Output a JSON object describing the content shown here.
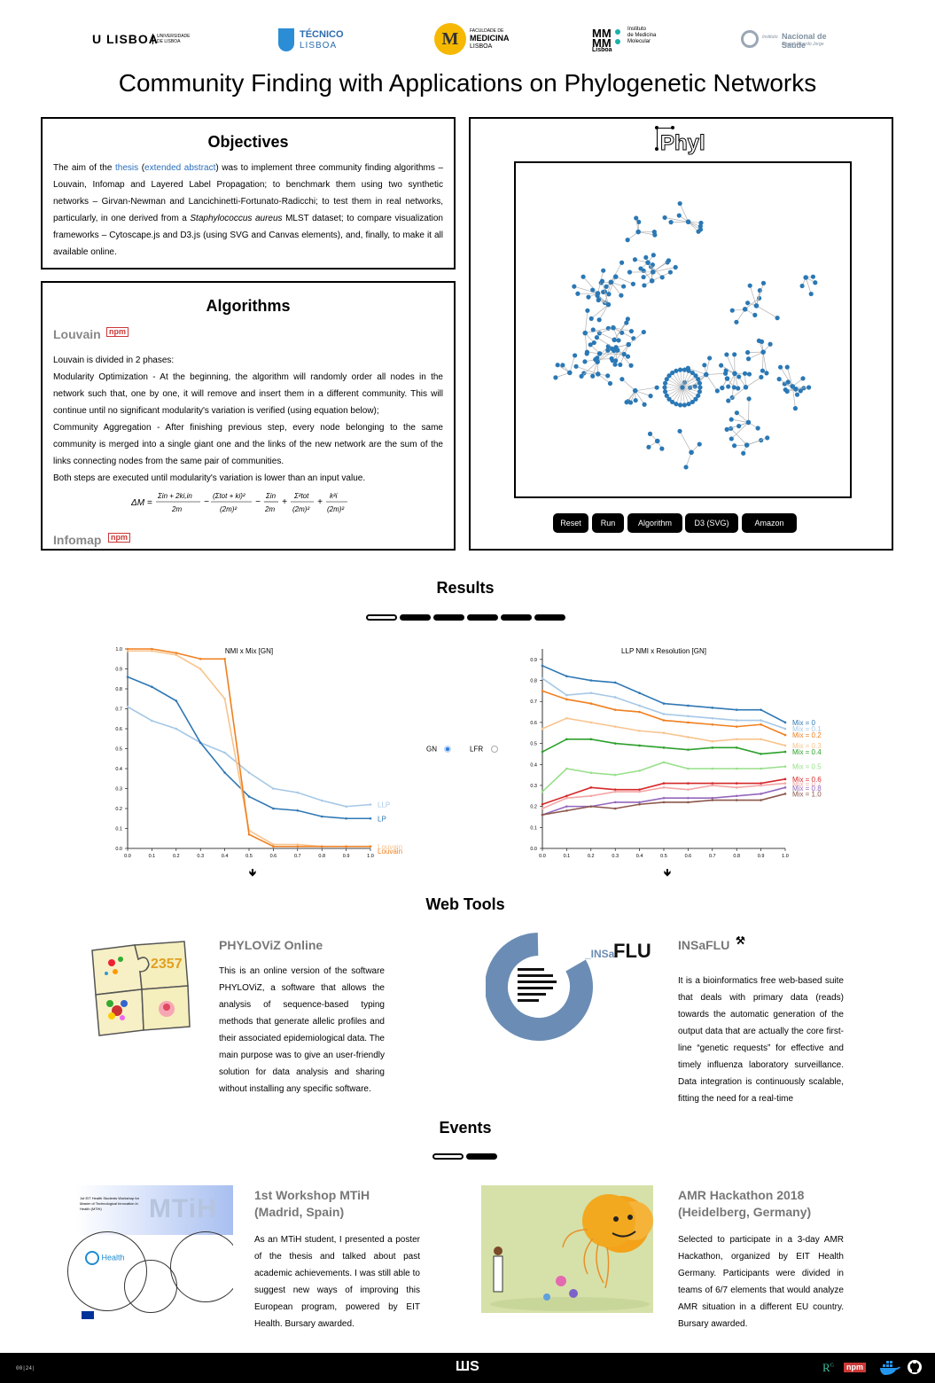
{
  "logos": {
    "lisboa": "U LISBOA",
    "lisboa_sub": "UNIVERSIDADE DE LISBOA",
    "tecnico": "TÉCNICO",
    "tecnico_sub": "LISBOA",
    "medicina_l1": "FACULDADE DE",
    "medicina_l2": "MEDICINA",
    "medicina_l3": "LISBOA",
    "imm_l1": "Instituto",
    "imm_l2": "de Medicina",
    "imm_l3": "Molecular",
    "imm_city": "Lisboa",
    "insa_pre": "Instituto",
    "insa_main": "Nacional de Saúde",
    "insa_sub": "Doutor Ricardo Jorge"
  },
  "page_title": "Community Finding with Applications on Phylogenetic Networks",
  "objectives": {
    "title": "Objectives",
    "t1": "The aim of the ",
    "link1": "thesis",
    "t2": " (",
    "link2": "extended abstract",
    "t3": ") was to implement three community finding algorithms – Louvain, Infomap and Layered Label Propagation; to benchmark them using two synthetic networks – Girvan-Newman and Lancichinetti-Fortunato-Radicchi; to test them in real networks, particularly, in one derived from a ",
    "italic": "Staphylococcus aureus",
    "t4": " MLST dataset; to compare visualization frameworks – Cytoscape.js and D3.js (using SVG and Canvas elements), and, finally, to make it all available online."
  },
  "algorithms": {
    "title": "Algorithms",
    "louvain": "Louvain",
    "npm": "npm",
    "p1": "Louvain is divided in 2 phases:",
    "p2": "Modularity Optimization - At the beginning, the algorithm will randomly order all nodes in the network such that, one by one, it will remove and insert them in a different community. This will continue until no significant modularity's variation is verified (using equation below);",
    "p3": "Community Aggregation - After finishing previous step, every node belonging to the same community is merged into a single giant one and the links of the new network are the sum of the links connecting nodes from the same pair of communities.",
    "p4": "Both steps are executed until modularity's variation is lower than an input value.",
    "infomap": "Infomap"
  },
  "phyl": {
    "logo": "Phyl",
    "buttons": [
      "Reset",
      "Run",
      "Algorithm",
      "D3 (SVG)",
      "Amazon"
    ]
  },
  "results": {
    "title": "Results",
    "radio_gn": "GN",
    "radio_lfr": "LFR",
    "arrow": "🡻"
  },
  "chart_data": [
    {
      "type": "line",
      "title": "NMI x Mix [GN]",
      "x": [
        0.0,
        0.1,
        0.2,
        0.3,
        0.4,
        0.5,
        0.6,
        0.7,
        0.8,
        0.9,
        1.0
      ],
      "x_ticks": [
        "0.0",
        "0.1",
        "0.2",
        "0.3",
        "0.4",
        "0.5",
        "0.6",
        "0.7",
        "0.8",
        "0.9",
        "1.0"
      ],
      "y_ticks": [
        "0.0",
        "0.1",
        "0.2",
        "0.3",
        "0.4",
        "0.5",
        "0.6",
        "0.7",
        "0.8",
        "0.9",
        "1.0"
      ],
      "ylim": [
        0,
        1
      ],
      "xlim": [
        0,
        1
      ],
      "series": [
        {
          "name": "LLP",
          "color": "#a6c8e6",
          "values": [
            0.71,
            0.64,
            0.6,
            0.53,
            0.48,
            0.38,
            0.3,
            0.28,
            0.24,
            0.21,
            0.22
          ]
        },
        {
          "name": "LP",
          "color": "#2f78b4",
          "values": [
            0.86,
            0.81,
            0.74,
            0.53,
            0.38,
            0.26,
            0.2,
            0.19,
            0.16,
            0.15,
            0.15
          ]
        },
        {
          "name": "Louvain",
          "color": "#f7c48e",
          "values": [
            0.99,
            0.99,
            0.97,
            0.9,
            0.75,
            0.09,
            0.02,
            0.02,
            0.01,
            0.01,
            0.01
          ]
        },
        {
          "name": "Louvain",
          "color": "#f07f1e",
          "values": [
            1.0,
            1.0,
            0.98,
            0.95,
            0.95,
            0.07,
            0.01,
            0.01,
            0.01,
            0.01,
            0.01
          ]
        }
      ]
    },
    {
      "type": "line",
      "title": "LLP NMI x Resolution [GN]",
      "x": [
        0.0,
        0.1,
        0.2,
        0.3,
        0.4,
        0.5,
        0.6,
        0.7,
        0.8,
        0.9,
        1.0
      ],
      "x_ticks": [
        "0.0",
        "0.1",
        "0.2",
        "0.3",
        "0.4",
        "0.5",
        "0.6",
        "0.7",
        "0.8",
        "0.9",
        "1.0"
      ],
      "y_ticks": [
        "0.0",
        "0.1",
        "0.2",
        "0.3",
        "0.4",
        "0.5",
        "0.6",
        "0.7",
        "0.8",
        "0.9"
      ],
      "ylim": [
        0,
        0.95
      ],
      "xlim": [
        0,
        1
      ],
      "series": [
        {
          "name": "Mix = 0",
          "color": "#2f78b4",
          "values": [
            0.87,
            0.82,
            0.8,
            0.79,
            0.74,
            0.69,
            0.68,
            0.67,
            0.66,
            0.66,
            0.6
          ]
        },
        {
          "name": "Mix = 0.1",
          "color": "#a6c8e6",
          "values": [
            0.81,
            0.73,
            0.74,
            0.72,
            0.68,
            0.64,
            0.63,
            0.62,
            0.61,
            0.61,
            0.57
          ]
        },
        {
          "name": "Mix = 0.2",
          "color": "#f07f1e",
          "values": [
            0.75,
            0.71,
            0.69,
            0.66,
            0.65,
            0.61,
            0.6,
            0.59,
            0.58,
            0.59,
            0.54
          ]
        },
        {
          "name": "Mix = 0.3",
          "color": "#f7c48e",
          "values": [
            0.57,
            0.62,
            0.6,
            0.58,
            0.56,
            0.55,
            0.53,
            0.51,
            0.52,
            0.52,
            0.49
          ]
        },
        {
          "name": "Mix = 0.4",
          "color": "#2ca02c",
          "values": [
            0.46,
            0.52,
            0.52,
            0.5,
            0.49,
            0.48,
            0.47,
            0.48,
            0.48,
            0.45,
            0.46
          ]
        },
        {
          "name": "Mix = 0.5",
          "color": "#98df8a",
          "values": [
            0.27,
            0.38,
            0.36,
            0.35,
            0.37,
            0.41,
            0.38,
            0.38,
            0.38,
            0.38,
            0.39
          ]
        },
        {
          "name": "Mix = 0.6",
          "color": "#d62728",
          "values": [
            0.21,
            0.25,
            0.29,
            0.28,
            0.28,
            0.31,
            0.31,
            0.31,
            0.31,
            0.31,
            0.33
          ]
        },
        {
          "name": "Mix = 0.7",
          "color": "#f4a6a6",
          "values": [
            0.19,
            0.24,
            0.25,
            0.27,
            0.27,
            0.29,
            0.28,
            0.3,
            0.29,
            0.3,
            0.31
          ]
        },
        {
          "name": "Mix = 0.8",
          "color": "#9467bd",
          "values": [
            0.16,
            0.2,
            0.2,
            0.22,
            0.22,
            0.24,
            0.24,
            0.24,
            0.25,
            0.26,
            0.29
          ]
        },
        {
          "name": "Mix = 1.0",
          "color": "#8c564b",
          "values": [
            0.16,
            0.18,
            0.2,
            0.19,
            0.21,
            0.22,
            0.22,
            0.23,
            0.23,
            0.23,
            0.26
          ]
        }
      ]
    }
  ],
  "webtools": {
    "title": "Web Tools",
    "phyloviz_title": "PHYLOViZ Online",
    "phyloviz_text": "This is an online version of the software PHYLOViZ, a software that allows the analysis of sequence-based typing methods that generate allelic profiles and their associated epidemiological data. The main purpose was to give an user-friendly solution for data analysis and sharing without installing any specific software.",
    "puzzle_numbers": "2357",
    "insaflu_logo_pre": "_INSa",
    "insaflu_logo_main": "FLU",
    "insaflu_title": "INSaFLU",
    "insaflu_text": "It is a bioinformatics free web-based suite that deals with primary data (reads) towards the automatic generation of the output data that are actually the core first-line “genetic requests” for effective and timely influenza laboratory surveillance. Data integration is continuously scalable, fitting the need for a real-time"
  },
  "events": {
    "title": "Events",
    "mtih_title": "1st Workshop MTiH",
    "mtih_sub": "(Madrid, Spain)",
    "mtih_text": "As an MTiH student, I presented a poster of the thesis and talked about past academic achievements. I was still able to suggest new ways of improving this European program, powered by EIT Health. Bursary awarded.",
    "mtih_img_text": "1st EIT Health Students Workshop for Master of Technological Innovation in Health (MTiH)",
    "mtih_logo": "MTiH",
    "eit": "Health",
    "amr_title": "AMR Hackathon 2018",
    "amr_sub": "(Heidelberg, Germany)",
    "amr_text": "Selected to participate in a 3-day AMR Hackathon, organized by EIT Health Germany. Participants were divided in teams of 6/7 elements that would analyze AMR situation in a different EU country. Bursary awarded."
  },
  "footer": {
    "counter": "00|24|",
    "logo": "ШS",
    "rg": "R",
    "npm": "npm"
  }
}
